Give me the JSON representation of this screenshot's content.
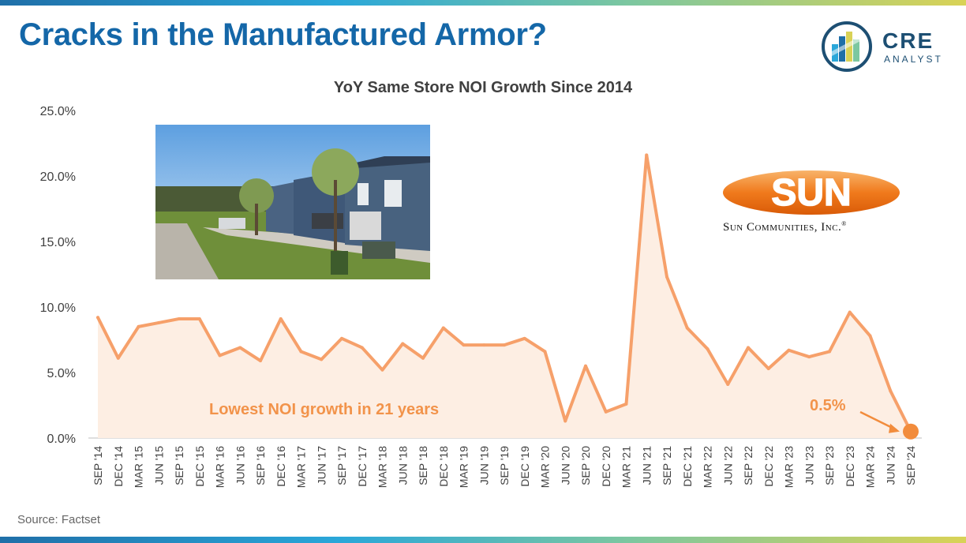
{
  "header": {
    "title": "Cracks in the Manufactured Armor?",
    "brand_main": "CRE",
    "brand_sub": "ANALYST"
  },
  "footer": {
    "source": "Source: Factset"
  },
  "annotations": {
    "lowest": "Lowest NOI growth in 21 years",
    "last_value": "0.5%"
  },
  "sun_logo": {
    "wordmark": "SUN",
    "tagline": "Sun Communities, Inc.",
    "registered": "®"
  },
  "colors": {
    "title": "#1467a8",
    "line": "#f6a06a",
    "area": "#fdeee3",
    "annotation": "#f2934a",
    "endpoint": "#f28c3c"
  },
  "chart_data": {
    "type": "area",
    "title": "YoY Same Store NOI Growth Since 2014",
    "xlabel": "",
    "ylabel": "",
    "ylim": [
      0,
      25
    ],
    "yticks": [
      "0.0%",
      "5.0%",
      "10.0%",
      "15.0%",
      "20.0%",
      "25.0%"
    ],
    "grid": false,
    "x": [
      "SEP '14",
      "DEC '14",
      "MAR '15",
      "JUN '15",
      "SEP '15",
      "DEC '15",
      "MAR '16",
      "JUN '16",
      "SEP '16",
      "DEC '16",
      "MAR '17",
      "JUN '17",
      "SEP '17",
      "DEC '17",
      "MAR '18",
      "JUN '18",
      "SEP '18",
      "DEC '18",
      "MAR '19",
      "JUN '19",
      "SEP '19",
      "DEC '19",
      "MAR '20",
      "JUN '20",
      "SEP '20",
      "DEC '20",
      "MAR '21",
      "JUN '21",
      "SEP '21",
      "DEC '21",
      "MAR '22",
      "JUN '22",
      "SEP '22",
      "DEC '22",
      "MAR '23",
      "JUN '23",
      "SEP '23",
      "DEC '23",
      "MAR '24",
      "JUN '24",
      "SEP '24"
    ],
    "values": [
      9.2,
      6.1,
      8.5,
      8.8,
      9.1,
      9.1,
      6.3,
      6.9,
      5.9,
      9.1,
      6.6,
      6.0,
      7.6,
      6.9,
      5.2,
      7.2,
      6.1,
      8.4,
      7.1,
      7.1,
      7.1,
      7.6,
      6.6,
      1.3,
      5.5,
      2.0,
      2.6,
      21.6,
      12.3,
      8.4,
      6.8,
      4.1,
      6.9,
      5.3,
      6.7,
      6.2,
      6.6,
      9.6,
      7.8,
      3.6,
      0.5
    ]
  }
}
